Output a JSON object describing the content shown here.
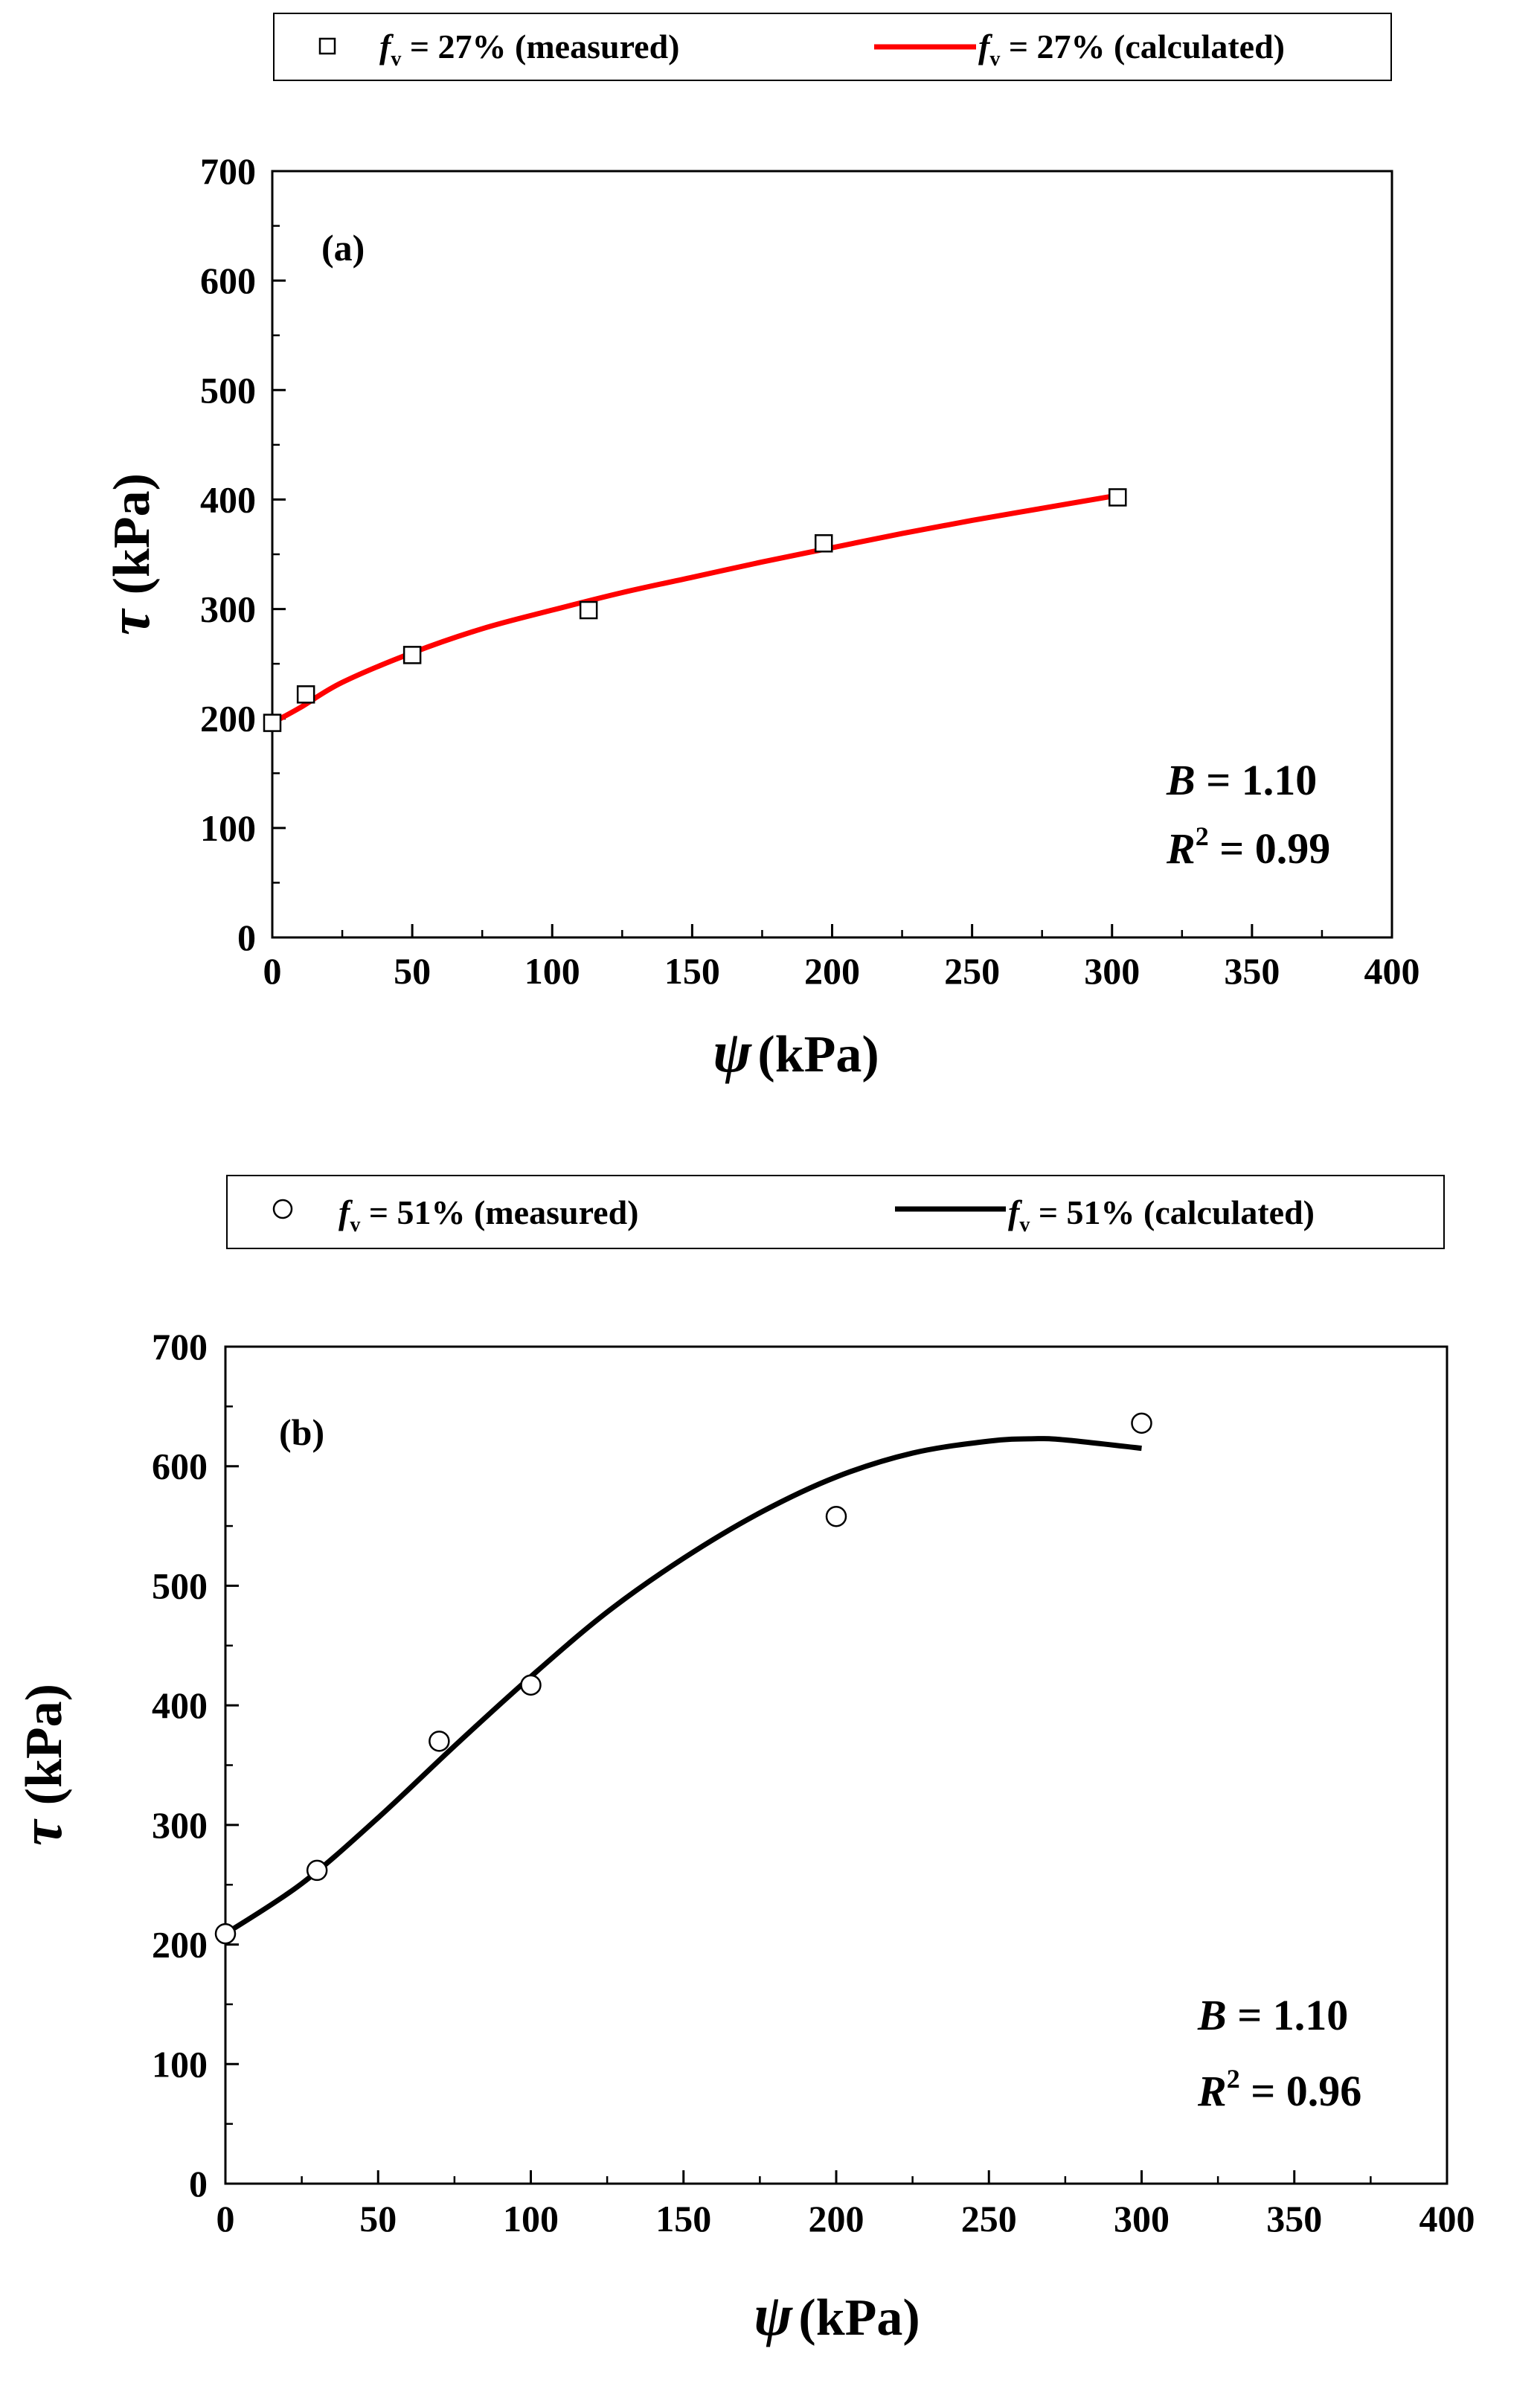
{
  "chart_data": [
    {
      "type": "scatter",
      "panel_label": "(a)",
      "xlabel": {
        "symbol": "ψ",
        "unit": "(kPa)"
      },
      "ylabel": {
        "symbol": "τ",
        "unit": "(kPa)"
      },
      "xlim": [
        0,
        400
      ],
      "ylim": [
        0,
        700
      ],
      "xticks": [
        "0",
        "50",
        "100",
        "150",
        "200",
        "250",
        "300",
        "350",
        "400"
      ],
      "yticks": [
        "0",
        "100",
        "200",
        "300",
        "400",
        "500",
        "600",
        "700"
      ],
      "legend": {
        "measured": {
          "f": "f",
          "sub": "v",
          "text": " = 27% (measured)"
        },
        "calculated": {
          "f": "f",
          "sub": "v",
          "text": " = 27% (calculated)"
        }
      },
      "series": [
        {
          "name": "fv = 27% (measured)",
          "marker": "square",
          "color": "#000000",
          "x": [
            0,
            12,
            50,
            113,
            197,
            302
          ],
          "y": [
            196,
            222,
            258,
            299,
            360,
            402
          ]
        },
        {
          "name": "fv = 27% (calculated)",
          "kind": "line",
          "color": "#ff0000",
          "x": [
            0,
            10,
            25,
            50,
            75,
            100,
            125,
            150,
            175,
            200,
            225,
            250,
            275,
            300
          ],
          "y": [
            196,
            210,
            233,
            260,
            282,
            299,
            315,
            329,
            343,
            356,
            369,
            381,
            392,
            403
          ]
        }
      ],
      "stats": {
        "b_label": "B",
        "b_value": " = 1.10",
        "r_label": "R",
        "r_sup": "2",
        "r_value": " = 0.99"
      }
    },
    {
      "type": "scatter",
      "panel_label": "(b)",
      "xlabel": {
        "symbol": "ψ",
        "unit": "(kPa)"
      },
      "ylabel": {
        "symbol": "τ",
        "unit": "(kPa)"
      },
      "xlim": [
        0,
        400
      ],
      "ylim": [
        0,
        700
      ],
      "xticks": [
        "0",
        "50",
        "100",
        "150",
        "200",
        "250",
        "300",
        "350",
        "400"
      ],
      "yticks": [
        "0",
        "100",
        "200",
        "300",
        "400",
        "500",
        "600",
        "700"
      ],
      "legend": {
        "measured": {
          "f": "f",
          "sub": "v",
          "text": " = 51% (measured)"
        },
        "calculated": {
          "f": "f",
          "sub": "v",
          "text": " = 51% (calculated)"
        }
      },
      "series": [
        {
          "name": "fv = 51% (measured)",
          "marker": "circle",
          "color": "#000000",
          "x": [
            0,
            30,
            70,
            100,
            200,
            300
          ],
          "y": [
            209,
            262,
            370,
            417,
            558,
            636
          ]
        },
        {
          "name": "fv = 51% (calculated)",
          "kind": "line",
          "color": "#000000",
          "x": [
            0,
            25,
            50,
            75,
            100,
            125,
            150,
            175,
            200,
            225,
            250,
            265,
            275,
            300
          ],
          "y": [
            209,
            251,
            306,
            366,
            424,
            478,
            523,
            561,
            591,
            611,
            621,
            623,
            622,
            615
          ]
        }
      ],
      "stats": {
        "b_label": "B",
        "b_value": " = 1.10",
        "r_label": "R",
        "r_sup": "2",
        "r_value": " = 0.96"
      }
    }
  ]
}
